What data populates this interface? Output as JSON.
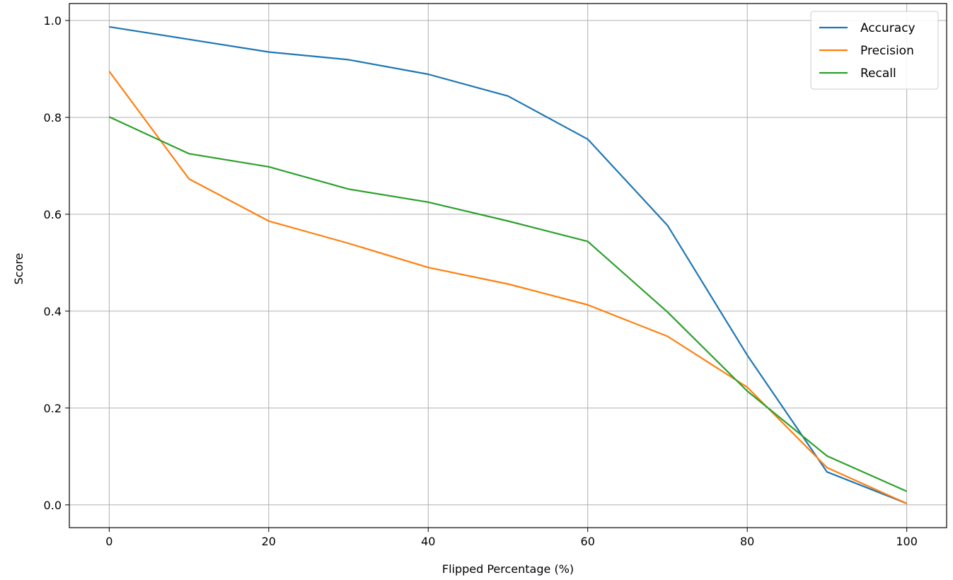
{
  "chart_data": {
    "type": "line",
    "xlabel": "Flipped Percentage (%)",
    "ylabel": "Score",
    "x": [
      0,
      10,
      20,
      30,
      40,
      50,
      60,
      70,
      80,
      90,
      100
    ],
    "xlim": [
      -5,
      105
    ],
    "ylim": [
      -0.047,
      1.035
    ],
    "xticks": [
      0,
      20,
      40,
      60,
      80,
      100
    ],
    "yticks": [
      0.0,
      0.2,
      0.4,
      0.6,
      0.8,
      1.0
    ],
    "xtick_labels": [
      "0",
      "20",
      "40",
      "60",
      "80",
      "100"
    ],
    "ytick_labels": [
      "0.0",
      "0.2",
      "0.4",
      "0.6",
      "0.8",
      "1.0"
    ],
    "grid": true,
    "legend_position": "top-right",
    "series": [
      {
        "name": "Accuracy",
        "color": "#1f77b4",
        "values": [
          0.987,
          0.961,
          0.935,
          0.919,
          0.889,
          0.844,
          0.755,
          0.577,
          0.309,
          0.068,
          0.003
        ]
      },
      {
        "name": "Precision",
        "color": "#ff7f0e",
        "values": [
          0.895,
          0.673,
          0.586,
          0.54,
          0.49,
          0.456,
          0.413,
          0.348,
          0.243,
          0.077,
          0.003
        ]
      },
      {
        "name": "Recall",
        "color": "#2ca02c",
        "values": [
          0.801,
          0.725,
          0.698,
          0.652,
          0.625,
          0.586,
          0.544,
          0.398,
          0.235,
          0.101,
          0.028
        ]
      }
    ]
  }
}
